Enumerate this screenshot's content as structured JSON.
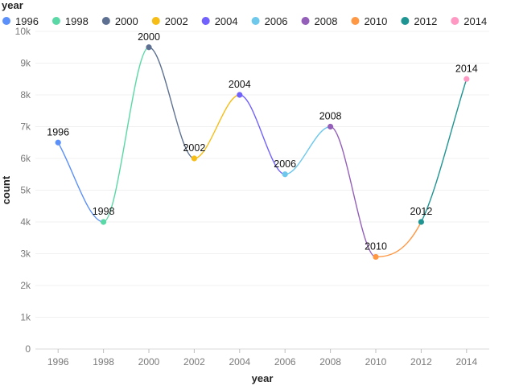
{
  "chart_data": {
    "type": "line",
    "xlabel": "year",
    "ylabel": "count",
    "legend_title": "year",
    "legend_position": "top-left",
    "grid": true,
    "xlim": [
      1995,
      2015
    ],
    "ylim": [
      0,
      10000
    ],
    "x_ticks": [
      "1996",
      "1998",
      "2000",
      "2002",
      "2004",
      "2006",
      "2008",
      "2010",
      "2012",
      "2014"
    ],
    "y_ticks": [
      "0",
      "1k",
      "2k",
      "3k",
      "4k",
      "5k",
      "6k",
      "7k",
      "8k",
      "9k",
      "10k"
    ],
    "points": [
      {
        "x": 1996,
        "y": 6500,
        "label": "1996",
        "color": "#5b8ff9"
      },
      {
        "x": 1998,
        "y": 4000,
        "label": "1998",
        "color": "#5ad8a6"
      },
      {
        "x": 2000,
        "y": 9500,
        "label": "2000",
        "color": "#5d7092"
      },
      {
        "x": 2002,
        "y": 6000,
        "label": "2002",
        "color": "#f6bd16"
      },
      {
        "x": 2004,
        "y": 8000,
        "label": "2004",
        "color": "#7262fd"
      },
      {
        "x": 2006,
        "y": 5500,
        "label": "2006",
        "color": "#6dc8ec"
      },
      {
        "x": 2008,
        "y": 7000,
        "label": "2008",
        "color": "#945fb9"
      },
      {
        "x": 2010,
        "y": 2900,
        "label": "2010",
        "color": "#ff9845"
      },
      {
        "x": 2012,
        "y": 4000,
        "label": "2012",
        "color": "#1e9493"
      },
      {
        "x": 2014,
        "y": 8500,
        "label": "2014",
        "color": "#ff99c3"
      }
    ]
  }
}
